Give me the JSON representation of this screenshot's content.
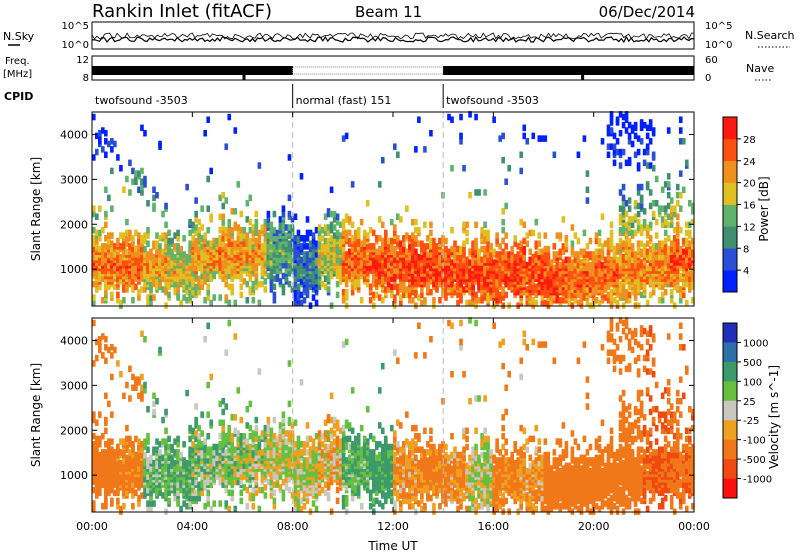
{
  "header": {
    "station": "Rankin Inlet (fitACF)",
    "beam": "Beam 11",
    "date": "06/Dec/2014"
  },
  "strips": {
    "nsky_label": "N.Sky",
    "nsky_hi": "10^5",
    "nsky_lo": "10^0",
    "nsearch_label": "N.Search",
    "nsearch_hi": "10^5",
    "nsearch_lo": "10^0",
    "freq_label": "Freq.",
    "freq_unit": "[MHz]",
    "freq_hi": "12",
    "freq_lo": "8",
    "nave_label": "Nave",
    "nave_hi": "60",
    "nave_lo": "0",
    "cpid_label": "CPID",
    "cpid_segments": [
      {
        "label": "twofsound -3503",
        "from": 0,
        "to": 8
      },
      {
        "label": "normal (fast) 151",
        "from": 8,
        "to": 14
      },
      {
        "label": "twofsound -3503",
        "from": 14,
        "to": 24
      }
    ]
  },
  "axes": {
    "xlabel": "Time UT",
    "xticks": [
      "00:00",
      "04:00",
      "08:00",
      "12:00",
      "16:00",
      "20:00",
      "00:00"
    ],
    "ylabel": "Slant Range [km]",
    "yticks": [
      "1000",
      "2000",
      "3000",
      "4000"
    ]
  },
  "power_scale": {
    "label": "Power [dB]",
    "ticks": [
      "4",
      "8",
      "12",
      "16",
      "20",
      "24",
      "28"
    ],
    "colors": [
      "#0020ff",
      "#2a4fd6",
      "#3f8f70",
      "#5fb36a",
      "#e0c020",
      "#f09020",
      "#ff5010",
      "#ff1a10"
    ]
  },
  "velocity_scale": {
    "label": "Velocity [m s^-1]",
    "ticks": [
      "1000",
      "500",
      "100",
      "25",
      "-25",
      "-100",
      "-500",
      "-1000"
    ],
    "colors": [
      "#1f2fb8",
      "#2f6fa8",
      "#3d9a6a",
      "#66c040",
      "#c8c8c0",
      "#f0a020",
      "#f07818",
      "#f04a10",
      "#ff1010"
    ]
  },
  "chart_data": [
    {
      "type": "heatmap",
      "title": "Rankin Inlet (fitACF)",
      "subtitle": "Beam 11 — 06/Dec/2014",
      "xlabel": "Time UT",
      "ylabel": "Slant Range [km]",
      "zlabel": "Power [dB]",
      "xlim": [
        0,
        24
      ],
      "ylim": [
        180,
        4500
      ],
      "zlim": [
        0,
        32
      ],
      "series": [
        {
          "x": [
            0.5,
            1.5,
            2.5,
            3.5,
            4.5,
            5.5,
            6.5,
            7.5,
            8.5,
            9.5,
            10.5,
            11.5,
            12.5,
            13.5,
            14.5,
            15.5,
            16.5,
            17.5,
            18.5,
            19.5,
            20.5,
            21.5,
            22.5,
            23.5
          ],
          "y": [
            1150,
            1100,
            1050,
            1000,
            1300,
            1350,
            1350,
            1400,
            1000,
            1300,
            1200,
            1100,
            1050,
            1000,
            950,
            950,
            900,
            900,
            850,
            850,
            900,
            1000,
            1100,
            1200
          ],
          "z": [
            24,
            26,
            22,
            20,
            22,
            24,
            22,
            14,
            10,
            18,
            26,
            28,
            28,
            28,
            28,
            28,
            28,
            28,
            28,
            26,
            26,
            24,
            24,
            26
          ]
        }
      ]
    },
    {
      "type": "heatmap",
      "title": "Rankin Inlet (fitACF)",
      "subtitle": "Beam 11 — 06/Dec/2014",
      "xlabel": "Time UT",
      "ylabel": "Slant Range [km]",
      "zlabel": "Velocity [m s^-1]",
      "xlim": [
        0,
        24
      ],
      "ylim": [
        180,
        4500
      ],
      "zlim": [
        -1000,
        1000
      ],
      "series": [
        {
          "x": [
            0.5,
            1.5,
            2.5,
            3.5,
            4.5,
            5.5,
            6.5,
            7.5,
            8.5,
            9.5,
            10.5,
            11.5,
            12.5,
            13.5,
            14.5,
            15.5,
            16.5,
            17.5,
            18.5,
            19.5,
            20.5,
            21.5,
            22.5,
            23.5
          ],
          "y": [
            1150,
            1100,
            1050,
            1000,
            1300,
            1350,
            1350,
            1400,
            1000,
            1300,
            1200,
            1100,
            1050,
            1000,
            950,
            950,
            900,
            900,
            850,
            850,
            900,
            1000,
            1100,
            1200
          ],
          "z": [
            -200,
            -150,
            80,
            100,
            60,
            40,
            20,
            0,
            0,
            -50,
            100,
            150,
            -100,
            -150,
            -100,
            0,
            -150,
            -100,
            -200,
            -300,
            -250,
            -400,
            -500,
            -450
          ]
        }
      ]
    }
  ]
}
